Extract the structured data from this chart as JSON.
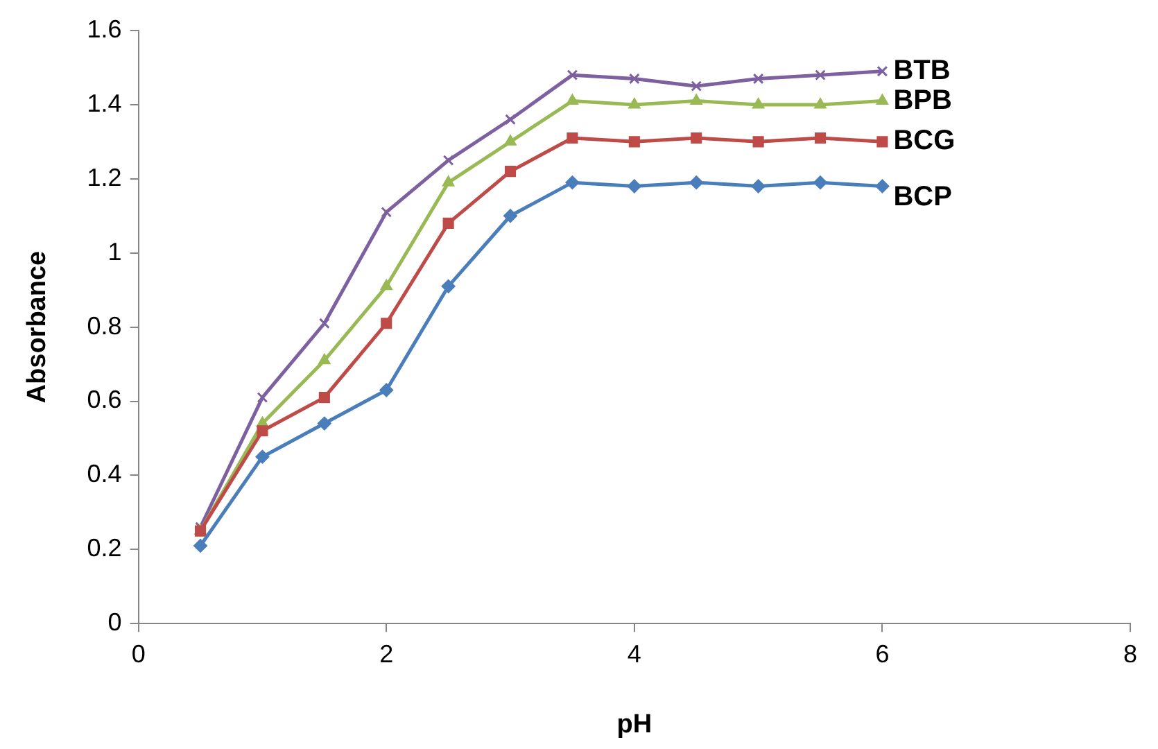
{
  "chart_data": {
    "type": "line",
    "xlabel": "pH",
    "ylabel": "Absorbance",
    "x": [
      0.5,
      1,
      1.5,
      2,
      2.5,
      3,
      3.5,
      4,
      4.5,
      5,
      5.5,
      6
    ],
    "xlim": [
      0,
      8
    ],
    "xticks": [
      0,
      2,
      4,
      6,
      8
    ],
    "ylim": [
      0,
      1.6
    ],
    "yticks": [
      0,
      0.2,
      0.4,
      0.6,
      0.8,
      1,
      1.2,
      1.4,
      1.6
    ],
    "grid": false,
    "legend": false,
    "line_style": "solid",
    "series": [
      {
        "name": "BCP",
        "color": "#4a7ebb",
        "marker": "diamond",
        "values": [
          0.21,
          0.45,
          0.54,
          0.63,
          0.91,
          1.1,
          1.19,
          1.18,
          1.19,
          1.18,
          1.19,
          1.18
        ]
      },
      {
        "name": "BCG",
        "color": "#be4b48",
        "marker": "square",
        "values": [
          0.25,
          0.52,
          0.61,
          0.81,
          1.08,
          1.22,
          1.31,
          1.3,
          1.31,
          1.3,
          1.31,
          1.3
        ]
      },
      {
        "name": "BPB",
        "color": "#98b954",
        "marker": "triangle",
        "values": [
          0.25,
          0.54,
          0.71,
          0.91,
          1.19,
          1.3,
          1.41,
          1.4,
          1.41,
          1.4,
          1.4,
          1.41
        ]
      },
      {
        "name": "BTB",
        "color": "#7d60a0",
        "marker": "cross",
        "values": [
          0.26,
          0.61,
          0.81,
          1.11,
          1.25,
          1.36,
          1.48,
          1.47,
          1.45,
          1.47,
          1.48,
          1.49
        ]
      }
    ]
  }
}
